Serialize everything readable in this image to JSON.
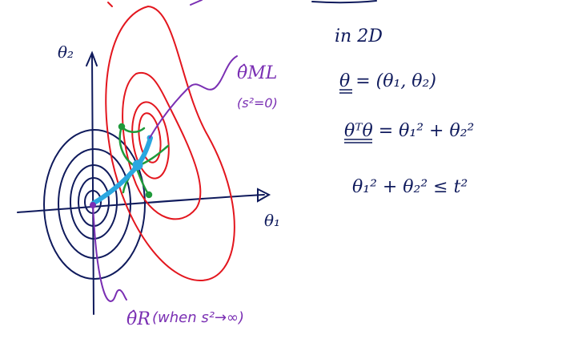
{
  "colors": {
    "navy": "#0f1a5c",
    "red": "#e3161e",
    "purple": "#7a2fb3",
    "green": "#1f9a3a",
    "blue": "#2aa7e0"
  },
  "axes": {
    "y_label": "θ₂",
    "x_label": "θ₁"
  },
  "annotations": {
    "ml_label": "θ̂ML",
    "ml_condition": "(s²=0)",
    "ridge_label": "θ̂R",
    "ridge_condition": "(when s²→∞)"
  },
  "notes": {
    "line1": "in 2D",
    "line2": "θ = (θ₁, θ₂)",
    "line3": "θᵀθ = θ₁² + θ₂²",
    "line4": "θ₁² + θ₂² ≤ t²"
  }
}
